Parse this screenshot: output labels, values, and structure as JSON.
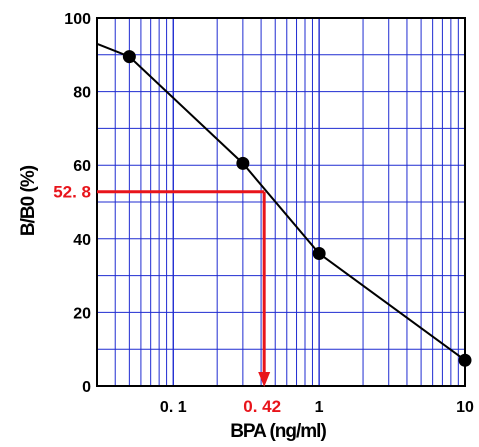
{
  "chart_data": {
    "type": "line",
    "xlabel": "BPA (ng/ml)",
    "ylabel": "B/B0 (%)",
    "x_scale": "log",
    "xlim": [
      0.03,
      10
    ],
    "ylim": [
      0,
      100
    ],
    "grid": true,
    "x_tick_labels": [
      {
        "value": 0.1,
        "label": "0. 1"
      },
      {
        "value": 1,
        "label": "1"
      },
      {
        "value": 10,
        "label": "10"
      }
    ],
    "y_tick_labels": [
      {
        "value": 0,
        "label": "0"
      },
      {
        "value": 20,
        "label": "20"
      },
      {
        "value": 40,
        "label": "40"
      },
      {
        "value": 60,
        "label": "60"
      },
      {
        "value": 80,
        "label": "80"
      },
      {
        "value": 100,
        "label": "100"
      }
    ],
    "series": [
      {
        "x": [
          0.03,
          0.05,
          0.3,
          1,
          10
        ],
        "y": [
          93,
          89.5,
          60.5,
          36,
          7
        ],
        "markers": [
          false,
          true,
          true,
          true,
          true
        ]
      }
    ],
    "annotations": [
      {
        "type": "horizontal-line",
        "y": 52.8,
        "label": "52. 8"
      },
      {
        "type": "vertical-arrow",
        "x": 0.42,
        "label": "0. 42"
      }
    ],
    "colors": {
      "grid": "#1f2bd1",
      "line": "#000000",
      "annotation": "#e8141b"
    }
  }
}
